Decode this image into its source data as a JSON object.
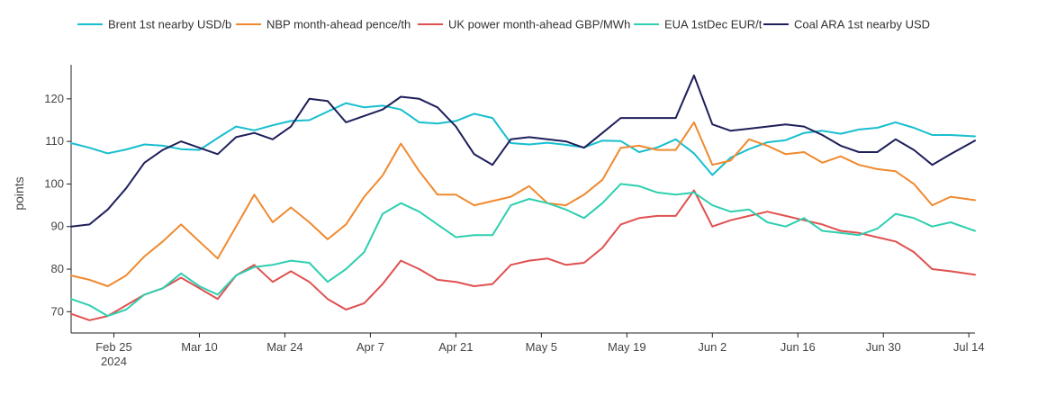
{
  "chart_data": {
    "type": "line",
    "ylabel": "points",
    "xlabel": "",
    "title": "",
    "ylim": [
      65,
      128
    ],
    "grid": false,
    "legend_position": "top",
    "y_ticks": [
      70,
      80,
      90,
      100,
      110,
      120
    ],
    "x_ticks": [
      {
        "date": "2024-02-25",
        "label": "Feb 25",
        "sublabel": "2024"
      },
      {
        "date": "2024-03-10",
        "label": "Mar 10",
        "sublabel": ""
      },
      {
        "date": "2024-03-24",
        "label": "Mar 24",
        "sublabel": ""
      },
      {
        "date": "2024-04-07",
        "label": "Apr 7",
        "sublabel": ""
      },
      {
        "date": "2024-04-21",
        "label": "Apr 21",
        "sublabel": ""
      },
      {
        "date": "2024-05-05",
        "label": "May 5",
        "sublabel": ""
      },
      {
        "date": "2024-05-19",
        "label": "May 19",
        "sublabel": ""
      },
      {
        "date": "2024-06-02",
        "label": "Jun 2",
        "sublabel": ""
      },
      {
        "date": "2024-06-16",
        "label": "Jun 16",
        "sublabel": ""
      },
      {
        "date": "2024-06-30",
        "label": "Jun 30",
        "sublabel": ""
      },
      {
        "date": "2024-07-14",
        "label": "Jul 14",
        "sublabel": ""
      }
    ],
    "x_range": [
      "2024-02-18",
      "2024-07-15"
    ],
    "x": [
      "2024-02-18",
      "2024-02-21",
      "2024-02-24",
      "2024-02-27",
      "2024-03-01",
      "2024-03-04",
      "2024-03-07",
      "2024-03-10",
      "2024-03-13",
      "2024-03-16",
      "2024-03-19",
      "2024-03-22",
      "2024-03-25",
      "2024-03-28",
      "2024-03-31",
      "2024-04-03",
      "2024-04-06",
      "2024-04-09",
      "2024-04-12",
      "2024-04-15",
      "2024-04-18",
      "2024-04-21",
      "2024-04-24",
      "2024-04-27",
      "2024-04-30",
      "2024-05-03",
      "2024-05-06",
      "2024-05-09",
      "2024-05-12",
      "2024-05-15",
      "2024-05-18",
      "2024-05-21",
      "2024-05-24",
      "2024-05-27",
      "2024-05-30",
      "2024-06-02",
      "2024-06-05",
      "2024-06-08",
      "2024-06-11",
      "2024-06-14",
      "2024-06-17",
      "2024-06-20",
      "2024-06-23",
      "2024-06-26",
      "2024-06-29",
      "2024-07-02",
      "2024-07-05",
      "2024-07-08",
      "2024-07-11",
      "2024-07-15"
    ],
    "series": [
      {
        "name": "Brent 1st nearby USD/b",
        "color": "#17becf",
        "values": [
          109.6,
          108.5,
          107.2,
          108.1,
          109.3,
          109.0,
          108.2,
          108.0,
          110.8,
          113.5,
          112.6,
          113.8,
          114.8,
          115.0,
          117.0,
          119.0,
          118.0,
          118.4,
          117.5,
          114.5,
          114.2,
          114.8,
          116.5,
          115.5,
          109.6,
          109.3,
          109.7,
          109.2,
          108.6,
          110.2,
          110.1,
          107.5,
          108.6,
          110.5,
          107.2,
          102.1,
          106.2,
          108.2,
          109.8,
          110.3,
          112.0,
          112.5,
          111.8,
          112.8,
          113.2,
          114.5,
          113.2,
          111.5,
          111.5,
          111.2
        ]
      },
      {
        "name": "NBP month-ahead pence/th",
        "color": "#f0892e",
        "values": [
          78.5,
          77.5,
          76.0,
          78.5,
          83.0,
          86.5,
          90.5,
          86.5,
          82.5,
          90.0,
          97.5,
          91.0,
          94.5,
          91.0,
          87.0,
          90.5,
          97.0,
          102.0,
          109.5,
          103.0,
          97.5,
          97.5,
          95.0,
          96.0,
          97.0,
          99.5,
          95.5,
          95.0,
          97.5,
          101.0,
          108.5,
          109.0,
          108.0,
          108.0,
          114.5,
          104.5,
          105.5,
          110.5,
          109.0,
          107.0,
          107.5,
          105.0,
          106.5,
          104.5,
          103.5,
          103.0,
          100.0,
          95.0,
          97.0,
          96.2
        ]
      },
      {
        "name": "UK power month-ahead GBP/MWh",
        "color": "#e05050",
        "values": [
          69.5,
          68.0,
          69.0,
          71.5,
          74.0,
          75.5,
          78.0,
          75.5,
          73.0,
          78.5,
          81.0,
          77.0,
          79.5,
          77.0,
          73.0,
          70.5,
          72.0,
          76.5,
          82.0,
          80.0,
          77.5,
          77.0,
          76.0,
          76.5,
          81.0,
          82.0,
          82.5,
          81.0,
          81.5,
          85.0,
          90.5,
          92.0,
          92.5,
          92.5,
          98.5,
          90.0,
          91.5,
          92.5,
          93.5,
          92.5,
          91.5,
          90.5,
          89.0,
          88.5,
          87.5,
          86.5,
          84.0,
          80.0,
          79.5,
          78.7
        ]
      },
      {
        "name": "EUA 1stDec EUR/t",
        "color": "#2ecfb0",
        "values": [
          73.0,
          71.5,
          69.0,
          70.5,
          74.0,
          75.5,
          79.0,
          76.0,
          74.0,
          78.5,
          80.5,
          81.0,
          82.0,
          81.5,
          77.0,
          80.0,
          84.0,
          93.0,
          95.5,
          93.5,
          90.5,
          87.5,
          88.0,
          88.0,
          95.0,
          96.5,
          95.5,
          94.0,
          92.0,
          95.5,
          100.0,
          99.5,
          98.0,
          97.5,
          98.0,
          95.0,
          93.5,
          94.0,
          91.0,
          90.0,
          92.0,
          89.0,
          88.5,
          88.0,
          89.5,
          93.0,
          92.0,
          90.0,
          91.0,
          89.0
        ]
      },
      {
        "name": "Coal ARA 1st nearby USD",
        "color": "#1e1f5a",
        "values": [
          90.0,
          90.5,
          94.0,
          99.0,
          105.0,
          108.0,
          110.0,
          108.5,
          107.0,
          111.0,
          112.0,
          110.5,
          113.5,
          120.0,
          119.5,
          114.5,
          116.0,
          117.5,
          120.5,
          120.0,
          118.0,
          113.5,
          107.0,
          104.5,
          110.5,
          111.0,
          110.5,
          110.0,
          108.5,
          112.0,
          115.5,
          115.5,
          115.5,
          115.5,
          125.5,
          114.0,
          112.5,
          113.0,
          113.5,
          114.0,
          113.5,
          111.5,
          109.0,
          107.5,
          107.5,
          110.5,
          108.0,
          104.5,
          107.0,
          110.2
        ]
      }
    ]
  }
}
